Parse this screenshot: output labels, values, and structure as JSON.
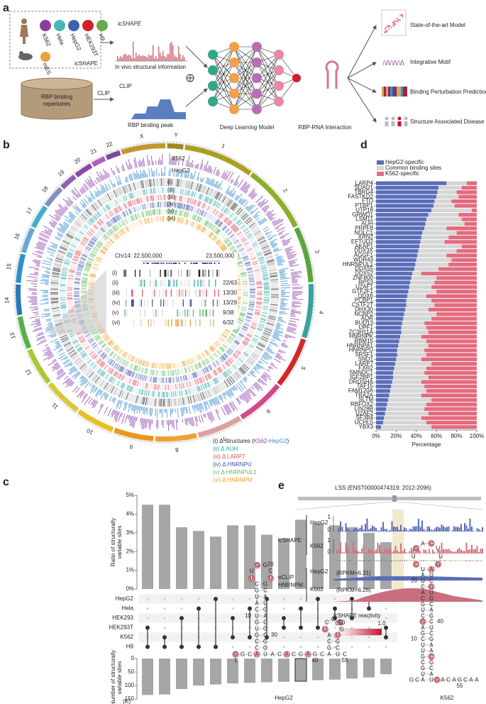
{
  "panel_a": {
    "label": "a",
    "cell_lines": [
      "K562",
      "Hela",
      "HepG2",
      "HEK293T",
      "H9"
    ],
    "mouse": "mES",
    "icshape_box": "icSHAPE",
    "icshape_track": "icSHAPE",
    "icshape_caption": "In vivo structural information",
    "clip_source": [
      "RBP binding",
      "repertoires"
    ],
    "clip_arrow": "CLIP",
    "clip_track": "CLIP",
    "clip_caption": "RBP binding peak",
    "model": "Deep Learning Model",
    "interaction": "RBP-RNA Interaction",
    "outputs": [
      "State-of-the-art Model",
      "Integrative Motif",
      "Binding Perturbation Prediction",
      "Structure Associated Disease"
    ]
  },
  "panel_b": {
    "label": "b",
    "chromosomes": [
      "1",
      "2",
      "3",
      "4",
      "5",
      "6",
      "7",
      "8",
      "9",
      "10",
      "11",
      "12",
      "13",
      "14",
      "15",
      "16",
      "17",
      "18",
      "19",
      "20",
      "21",
      "22",
      "X",
      "Y"
    ],
    "track_names": [
      "K562",
      "HepG2"
    ],
    "ring_labels": [
      "(i)",
      "(ii)",
      "(iii)",
      "(iv)",
      "(v)",
      "(vi)"
    ],
    "inset": {
      "start": "Chr14: 22,500,000",
      "end": "23,500,000",
      "ratios": [
        "22/63",
        "13/30",
        "13/29",
        "9/38",
        "6/32"
      ]
    },
    "legend": [
      [
        "(i) Δ Structures (",
        "K562",
        "-",
        "HepG2",
        ")"
      ],
      [
        "(ii) Δ AUH"
      ],
      [
        "(iii) Δ LARP7"
      ],
      [
        "(iv) Δ HNRNPU"
      ],
      [
        "(v) Δ HNRNPUL1"
      ],
      [
        "(vi) Δ HNRNPM"
      ]
    ]
  },
  "panel_c": {
    "label": "c"
  },
  "panel_d": {
    "label": "d"
  },
  "chart_data": [
    {
      "type": "upset",
      "sets": [
        "HepG2",
        "Hela",
        "HEK293",
        "HEK293T",
        "K562",
        "H9"
      ],
      "combinations": [
        [
          3,
          5
        ],
        [
          4,
          5
        ],
        [
          2,
          5
        ],
        [
          1,
          5
        ],
        [
          0,
          5
        ],
        [
          2,
          4
        ],
        [
          1,
          4
        ],
        [
          0,
          4
        ],
        [
          2,
          3
        ],
        [
          1,
          3
        ],
        [
          0,
          3
        ],
        [
          1,
          2
        ],
        [
          0,
          2
        ],
        [
          0,
          1
        ],
        [
          3,
          4
        ]
      ],
      "highlight": 9,
      "ratio": {
        "ylabel": [
          "Ratio of structurally",
          "variable sites"
        ],
        "ylim": [
          0,
          5
        ],
        "yticks": [
          {
            "value": 0,
            "label": "0%"
          },
          {
            "value": 1,
            "label": "1%"
          },
          {
            "value": 2,
            "label": "2%"
          },
          {
            "value": 3,
            "label": "3%"
          },
          {
            "value": 4,
            "label": "4%"
          },
          {
            "value": 5,
            "label": "5%"
          }
        ],
        "values": [
          4.5,
          4.5,
          3.3,
          3.1,
          2.8,
          3.4,
          3.4,
          2.9,
          2.7,
          3.7,
          3.5,
          3.4,
          3.3,
          3.0,
          2.5
        ],
        "color": "#a6a6a6"
      },
      "count": {
        "ylabel": [
          "Number of structurally",
          "variable sites"
        ],
        "unit": "(K)",
        "ylim": [
          0,
          150
        ],
        "yticks": [
          0,
          50,
          100,
          150
        ],
        "values": [
          135,
          133,
          113,
          100,
          96,
          92,
          90,
          88,
          86,
          84,
          80,
          78,
          74,
          70,
          58
        ],
        "color": "#a6a6a6"
      }
    },
    {
      "type": "stacked_hbar",
      "categories": [
        "LARP4",
        "SDAD1",
        "TBRG4",
        "FASTKD2",
        "FTO",
        "PTBP1",
        "UTP18",
        "GRWD1",
        "LSM11",
        "AUH",
        "PRPF8",
        "NOLC1",
        "XRN2",
        "EFTUD2",
        "AKAP1",
        "DDX3X",
        "AGGF1",
        "WDR43",
        "HNRNPUL1",
        "DDX55",
        "DDX52",
        "ZNF800",
        "RPS3",
        "U2AF1",
        "GTF2F1",
        "DDX6",
        "PCBP1",
        "CSTF2T",
        "DHX30",
        "NCBP2",
        "AQR",
        "BUD13",
        "UPF1",
        "ZC3H11A",
        "HNRNPK",
        "RBM15",
        "HNRNPA1",
        "HNRNPU",
        "SRSF1",
        "SND1",
        "LARP7",
        "FXR2",
        "SMNDC1",
        "IGF2BP1",
        "DROSHA",
        "TAF15",
        "FAM120A",
        "TRA2A",
        "SLTM",
        "RBFOX2",
        "LIN28B",
        "U2AF2",
        "SF3B4",
        "UCHL5",
        "YBX3"
      ],
      "series": [
        {
          "name": "HepG2-specific",
          "color": "#5a6db8",
          "values": [
            70,
            62,
            61,
            60,
            58,
            57,
            55,
            52,
            50,
            49,
            48,
            46,
            45,
            44,
            43,
            42,
            41,
            40,
            39,
            38,
            36,
            35,
            34,
            33,
            32,
            31,
            30,
            30,
            29,
            28,
            27,
            26,
            25,
            25,
            24,
            23,
            22,
            21,
            21,
            20,
            19,
            18,
            17,
            17,
            16,
            15,
            14,
            13,
            12,
            11,
            10,
            9,
            8,
            7,
            5
          ]
        },
        {
          "name": "Common binding sites",
          "color": "#d6d6d6",
          "values": [
            20,
            23,
            19,
            22,
            17,
            21,
            40,
            30,
            35,
            39,
            22,
            34,
            27,
            24,
            42,
            38,
            29,
            35,
            33,
            24,
            9,
            25,
            24,
            22,
            28,
            19,
            25,
            28,
            23,
            32,
            28,
            22,
            25,
            27,
            21,
            27,
            30,
            27,
            29,
            25,
            36,
            32,
            31,
            35,
            29,
            33,
            36,
            32,
            43,
            39,
            38,
            43,
            37,
            43,
            50
          ]
        },
        {
          "name": "K562-specific",
          "color": "#e36b7d",
          "values": [
            10,
            15,
            20,
            18,
            25,
            22,
            5,
            18,
            15,
            12,
            30,
            20,
            28,
            32,
            15,
            20,
            30,
            25,
            28,
            38,
            55,
            40,
            42,
            45,
            40,
            50,
            45,
            42,
            48,
            40,
            45,
            52,
            50,
            48,
            55,
            50,
            48,
            52,
            50,
            55,
            45,
            50,
            52,
            48,
            55,
            52,
            50,
            55,
            45,
            50,
            52,
            48,
            55,
            50,
            45
          ]
        }
      ],
      "xlim": [
        0,
        100
      ],
      "xticks": [
        {
          "value": 0,
          "label": "0%"
        },
        {
          "value": 20,
          "label": "20%"
        },
        {
          "value": 40,
          "label": "40%"
        },
        {
          "value": 60,
          "label": "60%"
        },
        {
          "value": 80,
          "label": "80%"
        },
        {
          "value": 100,
          "label": "100%"
        }
      ],
      "xlabel": "Percentage",
      "legend": "top-left"
    }
  ],
  "panel_e": {
    "label": "e",
    "gene": "LSS (ENST00000474319: 2012-2096)",
    "icshape": "icSHAPE",
    "clip": [
      "eCLIP",
      "HNRNPM"
    ],
    "cells": [
      "HepG2",
      "K562"
    ],
    "track_axis": [
      "1",
      "0"
    ],
    "rpkm": [
      "(RPKM=6.31)",
      "(RPKM=6.26)"
    ],
    "colorbar": {
      "title": "icSHAPE reactivity",
      "ticks": [
        {
          "value": 0,
          "label": "0.0"
        },
        {
          "value": 1,
          "label": "1.0"
        }
      ]
    },
    "structures": [
      {
        "name": "HepG2",
        "sequence": "GGCACCGUGUCAUGCUUGGCUGCAUGACGCGGUACACGAGCAGCAUCGCGUGCUC",
        "numbers": [
          1,
          10,
          20,
          30,
          40,
          50,
          55
        ],
        "reactive": [
          0,
          3,
          15,
          17,
          20,
          35,
          38,
          45,
          48,
          50
        ]
      },
      {
        "name": "K562",
        "sequence": "GCAUGCGUUCGAGCUGCACGAUCUGACUUGAUCGUGCAGCUCGAACGCAUGACAGCAA",
        "numbers": [
          10,
          20,
          40,
          55
        ],
        "reactive": [
          12,
          22,
          24,
          26,
          29,
          30,
          33,
          45,
          50
        ]
      }
    ]
  }
}
